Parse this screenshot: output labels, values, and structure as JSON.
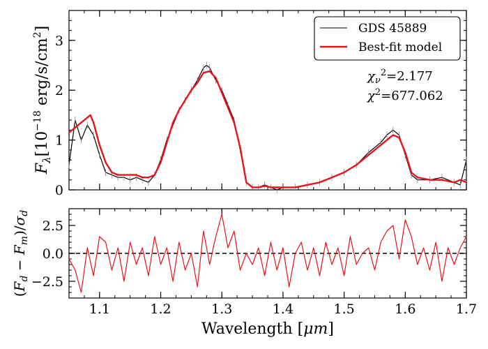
{
  "figure": {
    "xlabel_base": "Wavelength [",
    "xlabel_unit": "μm",
    "xlabel_end": "]"
  },
  "chart_data": [
    {
      "type": "line",
      "panel": "top",
      "ylabel_sym": "F",
      "ylabel_sub": "λ",
      "ylabel_unit_pre": "[10",
      "ylabel_exp": "−18",
      "ylabel_unit_post": " erg/s/cm",
      "ylabel_sq": "2",
      "ylabel_close": "]",
      "xlim": [
        1.05,
        1.7
      ],
      "ylim": [
        0,
        3.6
      ],
      "xticks": [
        1.1,
        1.2,
        1.3,
        1.4,
        1.5,
        1.6,
        1.7
      ],
      "yticks": [
        0,
        1,
        2,
        3
      ],
      "ytick_labels": [
        "0",
        "1",
        "2",
        "3"
      ],
      "series": [
        {
          "name": "GDS 45889",
          "color": "#000000",
          "x": [
            1.05,
            1.06,
            1.07,
            1.08,
            1.09,
            1.1,
            1.11,
            1.12,
            1.13,
            1.14,
            1.15,
            1.16,
            1.17,
            1.18,
            1.19,
            1.2,
            1.21,
            1.22,
            1.23,
            1.24,
            1.25,
            1.26,
            1.27,
            1.275,
            1.28,
            1.29,
            1.3,
            1.31,
            1.32,
            1.33,
            1.34,
            1.35,
            1.36,
            1.37,
            1.38,
            1.39,
            1.4,
            1.42,
            1.44,
            1.46,
            1.48,
            1.5,
            1.52,
            1.54,
            1.56,
            1.57,
            1.58,
            1.59,
            1.6,
            1.61,
            1.62,
            1.64,
            1.66,
            1.68,
            1.69,
            1.7
          ],
          "y": [
            0.5,
            1.4,
            1.0,
            1.3,
            1.1,
            0.7,
            0.35,
            0.3,
            0.25,
            0.25,
            0.2,
            0.25,
            0.2,
            0.15,
            0.3,
            0.6,
            1.0,
            1.3,
            1.6,
            1.8,
            2.0,
            2.2,
            2.45,
            2.5,
            2.45,
            2.2,
            2.0,
            1.7,
            1.4,
            0.8,
            0.15,
            0.05,
            0.05,
            0.1,
            0.05,
            0.0,
            0.05,
            0.05,
            0.1,
            0.15,
            0.25,
            0.35,
            0.5,
            0.75,
            0.95,
            1.1,
            1.2,
            1.1,
            0.7,
            0.3,
            0.2,
            0.2,
            0.25,
            0.15,
            0.1,
            0.6
          ]
        },
        {
          "name": "Best-fit model",
          "color": "#e8131b",
          "x": [
            1.05,
            1.06,
            1.07,
            1.08,
            1.085,
            1.09,
            1.1,
            1.11,
            1.12,
            1.13,
            1.14,
            1.15,
            1.16,
            1.17,
            1.18,
            1.19,
            1.2,
            1.21,
            1.22,
            1.23,
            1.24,
            1.25,
            1.26,
            1.27,
            1.28,
            1.29,
            1.3,
            1.31,
            1.32,
            1.33,
            1.34,
            1.35,
            1.36,
            1.37,
            1.38,
            1.39,
            1.4,
            1.42,
            1.44,
            1.46,
            1.48,
            1.5,
            1.52,
            1.54,
            1.56,
            1.57,
            1.58,
            1.59,
            1.6,
            1.61,
            1.62,
            1.64,
            1.66,
            1.68,
            1.69,
            1.7
          ],
          "y": [
            1.15,
            1.25,
            1.35,
            1.45,
            1.5,
            1.35,
            0.9,
            0.55,
            0.35,
            0.3,
            0.3,
            0.3,
            0.3,
            0.25,
            0.25,
            0.3,
            0.55,
            0.95,
            1.35,
            1.6,
            1.8,
            2.0,
            2.15,
            2.35,
            2.38,
            2.25,
            1.95,
            1.65,
            1.35,
            0.85,
            0.15,
            0.05,
            0.05,
            0.08,
            0.05,
            0.05,
            0.05,
            0.05,
            0.1,
            0.15,
            0.25,
            0.35,
            0.5,
            0.7,
            0.9,
            1.0,
            1.1,
            1.05,
            0.75,
            0.35,
            0.25,
            0.2,
            0.2,
            0.15,
            0.2,
            0.15
          ]
        }
      ],
      "legend": {
        "position": "top-right",
        "entries": [
          "GDS 45889",
          "Best-fit model"
        ]
      },
      "annotations": {
        "chi_nu_sym": "χ",
        "chi_nu_sub": "ν",
        "chi_nu_sup": "2",
        "chi_nu_val": "=2.177",
        "chi_sym": "χ",
        "chi_sup": "2",
        "chi_val": "=677.062"
      }
    },
    {
      "type": "line",
      "panel": "bottom",
      "ylabel": "(F_d − F_m)/σ_d",
      "ylabel_open": "(",
      "ylabel_F1": "F",
      "ylabel_d1": "d",
      "ylabel_minus": " − ",
      "ylabel_F2": "F",
      "ylabel_m": "m",
      "ylabel_close": ")/",
      "ylabel_sigma": "σ",
      "ylabel_d2": "d",
      "xlim": [
        1.05,
        1.7
      ],
      "ylim": [
        -4.0,
        4.0
      ],
      "xticks": [
        1.1,
        1.2,
        1.3,
        1.4,
        1.5,
        1.6,
        1.7
      ],
      "xtick_labels": [
        "1.1",
        "1.2",
        "1.3",
        "1.4",
        "1.5",
        "1.6",
        "1.7"
      ],
      "yticks": [
        -2.5,
        0.0,
        2.5
      ],
      "ytick_labels": [
        "−2.5",
        "0.0",
        "2.5"
      ],
      "reference_line": 0.0,
      "series": [
        {
          "name": "residuals",
          "color": "#e8131b",
          "x": [
            1.05,
            1.06,
            1.07,
            1.08,
            1.09,
            1.1,
            1.11,
            1.12,
            1.13,
            1.14,
            1.15,
            1.16,
            1.17,
            1.18,
            1.19,
            1.2,
            1.21,
            1.22,
            1.23,
            1.24,
            1.25,
            1.26,
            1.27,
            1.28,
            1.29,
            1.3,
            1.31,
            1.32,
            1.33,
            1.34,
            1.35,
            1.36,
            1.37,
            1.38,
            1.39,
            1.4,
            1.41,
            1.42,
            1.43,
            1.44,
            1.45,
            1.46,
            1.47,
            1.48,
            1.49,
            1.5,
            1.51,
            1.52,
            1.53,
            1.54,
            1.55,
            1.56,
            1.57,
            1.58,
            1.59,
            1.6,
            1.61,
            1.62,
            1.63,
            1.64,
            1.65,
            1.66,
            1.67,
            1.68,
            1.69,
            1.7
          ],
          "y": [
            -0.5,
            -1.5,
            -3.5,
            0.5,
            -2.0,
            1.5,
            1.0,
            -1.5,
            0.5,
            -2.5,
            1.0,
            -1.0,
            0.5,
            -2.0,
            1.5,
            -1.0,
            0.5,
            -2.5,
            1.0,
            -1.5,
            0.0,
            -3.0,
            2.0,
            -1.0,
            1.5,
            3.5,
            0.5,
            2.0,
            -1.5,
            0.0,
            -1.0,
            0.5,
            -2.0,
            1.0,
            -1.5,
            0.5,
            -3.0,
            0.0,
            1.0,
            -1.5,
            0.5,
            -2.0,
            1.0,
            -1.0,
            0.5,
            -2.0,
            1.5,
            -1.0,
            0.0,
            0.5,
            -1.5,
            1.0,
            2.0,
            2.5,
            -0.5,
            3.0,
            1.5,
            -1.0,
            0.5,
            -1.5,
            1.0,
            -2.5,
            0.5,
            -1.0,
            0.5,
            1.5
          ]
        }
      ]
    }
  ]
}
